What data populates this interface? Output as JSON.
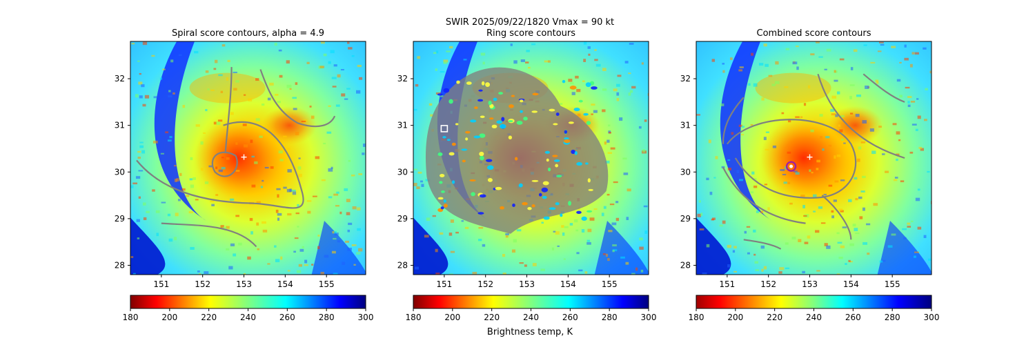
{
  "figure": {
    "suptitle": "SWIR  2025/09/22/1820    Vmax = 90 kt",
    "colorbar_label": "Brightness temp, K"
  },
  "colors": {
    "contour": "#808080",
    "center_marker": "#ffffff",
    "combined_ring": "#a020a0",
    "ring_box": "#ffffff"
  },
  "chart_data": [
    {
      "type": "heatmap",
      "title": "Spiral score contours, alpha =  4.9",
      "xticks": [
        "151",
        "152",
        "153",
        "154",
        "155"
      ],
      "yticks": [
        "28",
        "29",
        "30",
        "31",
        "32"
      ],
      "xlim": [
        150.25,
        155.95
      ],
      "ylim": [
        27.8,
        32.8
      ],
      "center": {
        "lon": 153.0,
        "lat": 30.32
      },
      "colormap": "jet",
      "colorbar": {
        "reversed": true,
        "ticks": [
          "180",
          "200",
          "220",
          "240",
          "260",
          "280",
          "300"
        ],
        "range": [
          180,
          300
        ]
      }
    },
    {
      "type": "heatmap",
      "title": "Ring score contours",
      "xticks": [
        "151",
        "152",
        "153",
        "154",
        "155"
      ],
      "yticks": [
        "28",
        "29",
        "30",
        "31",
        "32"
      ],
      "xlim": [
        150.25,
        155.95
      ],
      "ylim": [
        27.8,
        32.8
      ],
      "marker": {
        "lon": 151.0,
        "lat": 30.93
      },
      "colormap": "jet",
      "colorbar": {
        "reversed": true,
        "ticks": [
          "180",
          "200",
          "220",
          "240",
          "260",
          "280",
          "300"
        ],
        "range": [
          180,
          300
        ]
      }
    },
    {
      "type": "heatmap",
      "title": "Combined score contours",
      "xticks": [
        "151",
        "152",
        "153",
        "154",
        "155"
      ],
      "yticks": [
        "28",
        "29",
        "30",
        "31",
        "32"
      ],
      "xlim": [
        150.25,
        155.95
      ],
      "ylim": [
        27.8,
        32.8
      ],
      "center": {
        "lon": 153.0,
        "lat": 30.32
      },
      "ring": {
        "lon": 152.55,
        "lat": 30.12
      },
      "colormap": "jet",
      "colorbar": {
        "reversed": false,
        "ticks": [
          "180",
          "200",
          "220",
          "240",
          "260",
          "280",
          "300"
        ],
        "range": [
          180,
          300
        ]
      }
    }
  ]
}
